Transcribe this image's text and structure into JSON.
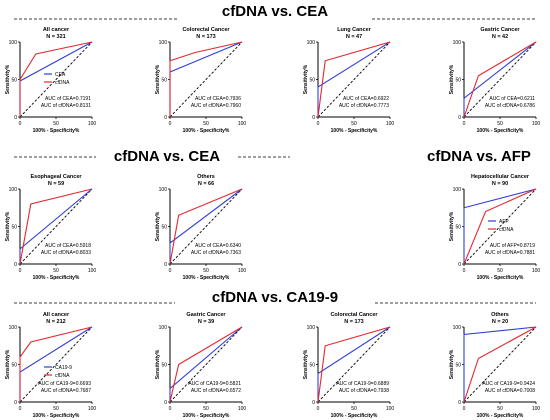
{
  "colors": {
    "line_a": "#2f3fd8",
    "line_b": "#e4282e",
    "axis": "#000000",
    "diag": "#000000"
  },
  "sections": [
    {
      "title": "cfDNA vs. CEA"
    },
    {
      "title": "cfDNA vs. CEA"
    },
    {
      "title": "cfDNA vs. AFP"
    },
    {
      "title": "cfDNA vs. CA19-9"
    }
  ],
  "common": {
    "xlabel": "100% - Specificity%",
    "ylabel": "Sensitivity%",
    "ticks": [
      "0",
      "50",
      "100"
    ]
  },
  "chart_data": [
    {
      "type": "line",
      "title": "All cancer",
      "subtitle": "N = 321",
      "xlabel": "100% - Specificity%",
      "ylabel": "Sensitivity%",
      "xlim": [
        0,
        100
      ],
      "ylim": [
        0,
        100
      ],
      "legend": [
        "CEA",
        "cfDNA"
      ],
      "auc": [
        "AUC of CEA=0.7191",
        "AUC of cfDNA=0.8131"
      ],
      "series": [
        {
          "name": "CEA",
          "x": [
            0,
            0,
            100
          ],
          "y": [
            0,
            48,
            100
          ]
        },
        {
          "name": "cfDNA",
          "x": [
            0,
            0,
            22,
            100
          ],
          "y": [
            0,
            50,
            84,
            100
          ]
        }
      ]
    },
    {
      "type": "line",
      "title": "Colorectal Cancer",
      "subtitle": "N = 173",
      "xlabel": "100% - Specificity%",
      "ylabel": "Sensitivity%",
      "xlim": [
        0,
        100
      ],
      "ylim": [
        0,
        100
      ],
      "legend": [],
      "auc": [
        "AUC of CEA=0.7936",
        "AUC of cfDNA=0.7960"
      ],
      "series": [
        {
          "name": "CEA",
          "x": [
            0,
            0,
            100
          ],
          "y": [
            0,
            60,
            100
          ]
        },
        {
          "name": "cfDNA",
          "x": [
            0,
            0,
            35,
            100
          ],
          "y": [
            0,
            75,
            86,
            100
          ]
        }
      ]
    },
    {
      "type": "line",
      "title": "Lung Cancer",
      "subtitle": "N = 47",
      "xlabel": "100% - Specificity%",
      "ylabel": "Sensitivity%",
      "xlim": [
        0,
        100
      ],
      "ylim": [
        0,
        100
      ],
      "legend": [],
      "auc": [
        "AUC of CEA=0.6922",
        "AUC of cfDNA=0.7773"
      ],
      "series": [
        {
          "name": "CEA",
          "x": [
            0,
            0,
            100
          ],
          "y": [
            0,
            40,
            100
          ]
        },
        {
          "name": "cfDNA",
          "x": [
            0,
            10,
            100
          ],
          "y": [
            0,
            75,
            100
          ]
        }
      ]
    },
    {
      "type": "line",
      "title": "Gastric Cancer",
      "subtitle": "N = 42",
      "xlabel": "100% - Specificity%",
      "ylabel": "Sensitivity%",
      "xlim": [
        0,
        100
      ],
      "ylim": [
        0,
        100
      ],
      "legend": [],
      "auc": [
        "AUC of CEA=0.6211",
        "AUC of cfDNA=0.6786"
      ],
      "series": [
        {
          "name": "CEA",
          "x": [
            0,
            0,
            100
          ],
          "y": [
            0,
            25,
            100
          ]
        },
        {
          "name": "cfDNA",
          "x": [
            0,
            20,
            100
          ],
          "y": [
            0,
            55,
            100
          ]
        }
      ]
    },
    {
      "type": "line",
      "title": "Esophageal Cancer",
      "subtitle": "N = 59",
      "xlabel": "100% - Specificity%",
      "ylabel": "Sensitivity%",
      "xlim": [
        0,
        100
      ],
      "ylim": [
        0,
        100
      ],
      "legend": [],
      "auc": [
        "AUC of CEA=0.5918",
        "AUC of cfDNA=0.8033"
      ],
      "series": [
        {
          "name": "CEA",
          "x": [
            0,
            0,
            100
          ],
          "y": [
            0,
            20,
            100
          ]
        },
        {
          "name": "cfDNA",
          "x": [
            0,
            15,
            100
          ],
          "y": [
            0,
            80,
            100
          ]
        }
      ]
    },
    {
      "type": "line",
      "title": "Others",
      "subtitle": "N = 66",
      "xlabel": "100% - Specificity%",
      "ylabel": "Sensitivity%",
      "xlim": [
        0,
        100
      ],
      "ylim": [
        0,
        100
      ],
      "legend": [],
      "auc": [
        "AUC of CEA=0.6340",
        "AUC of cfDNA=0.7363"
      ],
      "series": [
        {
          "name": "CEA",
          "x": [
            0,
            0,
            100
          ],
          "y": [
            0,
            28,
            100
          ]
        },
        {
          "name": "cfDNA",
          "x": [
            0,
            12,
            100
          ],
          "y": [
            0,
            65,
            100
          ]
        }
      ]
    },
    {
      "type": "line",
      "title": "Hepatocellular Cancer",
      "subtitle": "N = 90",
      "xlabel": "100% - Specificity%",
      "ylabel": "Sensitivity%",
      "xlim": [
        0,
        100
      ],
      "ylim": [
        0,
        100
      ],
      "legend": [
        "AFP",
        "cfDNA"
      ],
      "auc": [
        "AUC of AFP=0.8719",
        "AUC of cfDNA=0.7881"
      ],
      "series": [
        {
          "name": "AFP",
          "x": [
            0,
            0,
            100
          ],
          "y": [
            0,
            75,
            100
          ]
        },
        {
          "name": "cfDNA",
          "x": [
            0,
            30,
            100
          ],
          "y": [
            0,
            70,
            100
          ]
        }
      ]
    },
    {
      "type": "line",
      "title": "All cancer",
      "subtitle": "N = 212",
      "xlabel": "100% - Specificity%",
      "ylabel": "Sensitivity%",
      "xlim": [
        0,
        100
      ],
      "ylim": [
        0,
        100
      ],
      "legend": [
        "CA19-9",
        "cfDNA"
      ],
      "auc": [
        "AUC of CA19-9=0.6693",
        "AUC of cfDNA=0.7687"
      ],
      "series": [
        {
          "name": "CA19-9",
          "x": [
            0,
            0,
            100
          ],
          "y": [
            0,
            40,
            100
          ]
        },
        {
          "name": "cfDNA",
          "x": [
            0,
            0,
            15,
            100
          ],
          "y": [
            0,
            60,
            80,
            100
          ]
        }
      ]
    },
    {
      "type": "line",
      "title": "Gastric Cancer",
      "subtitle": "N = 39",
      "xlabel": "100% - Specificity%",
      "ylabel": "Sensitivity%",
      "xlim": [
        0,
        100
      ],
      "ylim": [
        0,
        100
      ],
      "legend": [],
      "auc": [
        "AUC of CA19-9=0.5821",
        "AUC of cfDNA=0.6572"
      ],
      "series": [
        {
          "name": "CA19-9",
          "x": [
            0,
            0,
            100
          ],
          "y": [
            0,
            18,
            100
          ]
        },
        {
          "name": "cfDNA",
          "x": [
            0,
            12,
            100
          ],
          "y": [
            0,
            50,
            100
          ]
        }
      ]
    },
    {
      "type": "line",
      "title": "Colorectal Cancer",
      "subtitle": "N = 173",
      "xlabel": "100% - Specificity%",
      "ylabel": "Sensitivity%",
      "xlim": [
        0,
        100
      ],
      "ylim": [
        0,
        100
      ],
      "legend": [],
      "auc": [
        "AUC of CA19-9=0.6889",
        "AUC of cfDNA=0.7938"
      ],
      "series": [
        {
          "name": "CA19-9",
          "x": [
            0,
            0,
            100
          ],
          "y": [
            0,
            38,
            100
          ]
        },
        {
          "name": "cfDNA",
          "x": [
            0,
            10,
            100
          ],
          "y": [
            0,
            75,
            100
          ]
        }
      ]
    },
    {
      "type": "line",
      "title": "Others",
      "subtitle": "N = 20",
      "xlabel": "100% - Specificity%",
      "ylabel": "Sensitivity%",
      "xlim": [
        0,
        100
      ],
      "ylim": [
        0,
        100
      ],
      "legend": [],
      "auc": [
        "AUC of CA19-9=0.9424",
        "AUC of cfDNA=0.7008"
      ],
      "series": [
        {
          "name": "CA19-9",
          "x": [
            0,
            0,
            100
          ],
          "y": [
            0,
            90,
            100
          ]
        },
        {
          "name": "cfDNA",
          "x": [
            0,
            20,
            100
          ],
          "y": [
            0,
            58,
            100
          ]
        }
      ]
    }
  ]
}
